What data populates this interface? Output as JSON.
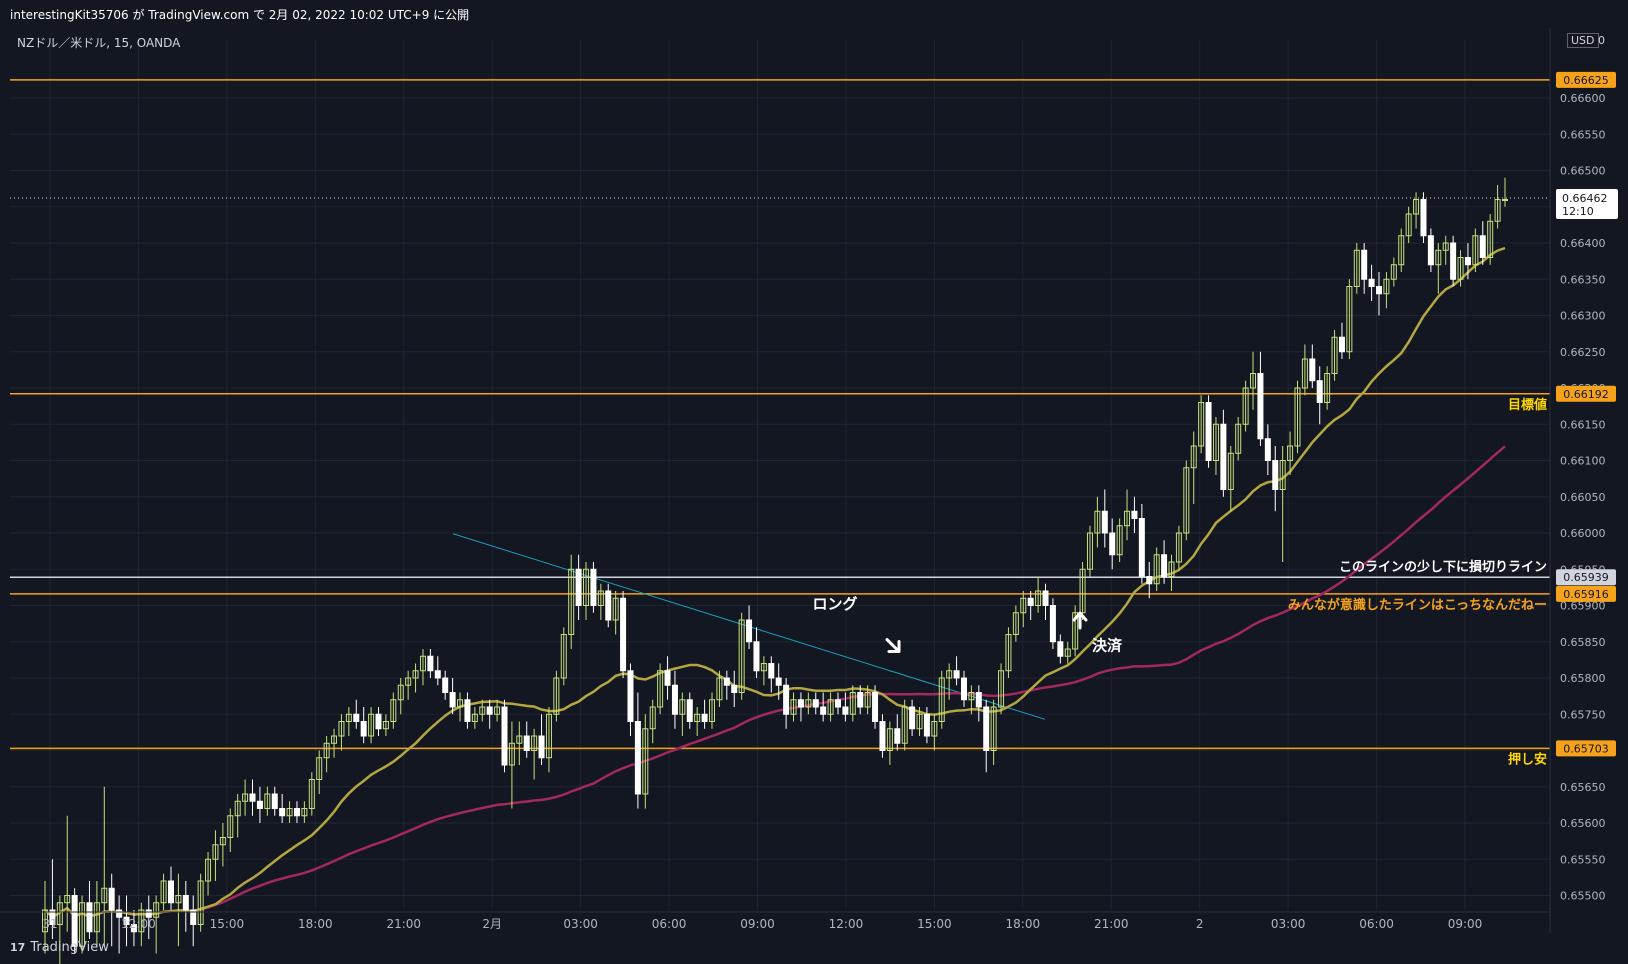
{
  "header": {
    "publish_text": "interestingKit35706 が TradingView.com で 2月 02, 2022 10:02 UTC+9 に公開",
    "symbol_text": "NZドル／米ドル, 15, OANDA",
    "currency_label": "USD",
    "currency_suffix": "0"
  },
  "footer": {
    "brand": "TradingView",
    "logo_icon": "tradingview-logo-icon"
  },
  "colors": {
    "background": "#131722",
    "grid": "#1f2433",
    "candle_up": "#c5e27a",
    "candle_down": "#ffffff",
    "sma_fast": "#b5a642",
    "sma_slow": "#a3285e",
    "horizontal_line": "#f7a21b",
    "white_line": "#d1d4dc",
    "trendline": "#1c9fc0",
    "label_yellow": "#ffd600",
    "label_orange": "#f7a21b"
  },
  "chart_data": {
    "type": "candlestick",
    "title": "NZドル／米ドル, 15, OANDA",
    "ylim": [
      0.6548,
      0.6668
    ],
    "y_ticks": [
      "0.66600",
      "0.66550",
      "0.66500",
      "0.66450",
      "0.66400",
      "0.66350",
      "0.66300",
      "0.66250",
      "0.66200",
      "0.66150",
      "0.66100",
      "0.66050",
      "0.66000",
      "0.65950",
      "0.65900",
      "0.65850",
      "0.65800",
      "0.65750",
      "0.65700",
      "0.65650",
      "0.65600",
      "0.65550",
      "0.65500"
    ],
    "x_ticks": [
      "31",
      "12:00",
      "15:00",
      "18:00",
      "21:00",
      "2月",
      "03:00",
      "06:00",
      "09:00",
      "12:00",
      "15:00",
      "18:00",
      "21:00",
      "2",
      "03:00",
      "06:00",
      "09:00"
    ],
    "horizontal_lines": [
      {
        "price": "0.66625",
        "color": "#f7a21b"
      },
      {
        "price": "0.66192",
        "color": "#f7a21b",
        "label": "目標値"
      },
      {
        "price": "0.65939",
        "color": "#d1d4dc",
        "label": "このラインの少し下に損切りライン"
      },
      {
        "price": "0.65916",
        "color": "#f7a21b",
        "label": "みんなが意識したラインはこっちなんだねー"
      },
      {
        "price": "0.65703",
        "color": "#f7a21b",
        "label": "押し安"
      }
    ],
    "current_price": {
      "price": "0.66462",
      "countdown": "12:10"
    },
    "annotations": [
      {
        "text": "ロング",
        "kind": "text"
      },
      {
        "text": "決済",
        "kind": "text"
      },
      {
        "icon": "arrow-down-right-icon",
        "kind": "arrow"
      },
      {
        "icon": "arrow-up-icon",
        "kind": "arrow"
      }
    ],
    "candles": [
      [
        0.6545,
        0.6552,
        0.6542,
        0.6548
      ],
      [
        0.6548,
        0.6555,
        0.6544,
        0.6546
      ],
      [
        0.6546,
        0.655,
        0.654,
        0.6549
      ],
      [
        0.6549,
        0.6561,
        0.6545,
        0.655
      ],
      [
        0.655,
        0.6551,
        0.6542,
        0.6543
      ],
      [
        0.6543,
        0.655,
        0.6542,
        0.6549
      ],
      [
        0.6549,
        0.6552,
        0.6544,
        0.6545
      ],
      [
        0.6545,
        0.6552,
        0.6543,
        0.6549
      ],
      [
        0.6549,
        0.6565,
        0.6543,
        0.6551
      ],
      [
        0.6551,
        0.6553,
        0.6543,
        0.6548
      ],
      [
        0.6548,
        0.655,
        0.6542,
        0.6547
      ],
      [
        0.6547,
        0.655,
        0.6543,
        0.6546
      ],
      [
        0.6546,
        0.6548,
        0.6543,
        0.6545
      ],
      [
        0.6545,
        0.6549,
        0.6543,
        0.6548
      ],
      [
        0.6548,
        0.655,
        0.6544,
        0.6547
      ],
      [
        0.6547,
        0.655,
        0.6542,
        0.6549
      ],
      [
        0.6549,
        0.6553,
        0.6548,
        0.6552
      ],
      [
        0.6552,
        0.6554,
        0.6548,
        0.6549
      ],
      [
        0.6549,
        0.6553,
        0.6543,
        0.655
      ],
      [
        0.655,
        0.6552,
        0.6545,
        0.6548
      ],
      [
        0.6548,
        0.655,
        0.6543,
        0.6546
      ],
      [
        0.6546,
        0.6553,
        0.6545,
        0.6552
      ],
      [
        0.6552,
        0.6556,
        0.655,
        0.6555
      ],
      [
        0.6555,
        0.6559,
        0.6552,
        0.6557
      ],
      [
        0.6557,
        0.656,
        0.6554,
        0.6558
      ],
      [
        0.6558,
        0.6562,
        0.6556,
        0.6561
      ],
      [
        0.6561,
        0.6564,
        0.6558,
        0.6563
      ],
      [
        0.6563,
        0.6566,
        0.6561,
        0.6564
      ],
      [
        0.6564,
        0.6566,
        0.6561,
        0.6563
      ],
      [
        0.6563,
        0.6565,
        0.656,
        0.6562
      ],
      [
        0.6562,
        0.6565,
        0.6561,
        0.6564
      ],
      [
        0.6564,
        0.6565,
        0.6561,
        0.6562
      ],
      [
        0.6562,
        0.6564,
        0.656,
        0.6561
      ],
      [
        0.6561,
        0.6563,
        0.656,
        0.6562
      ],
      [
        0.6562,
        0.6563,
        0.656,
        0.6561
      ],
      [
        0.6561,
        0.6563,
        0.656,
        0.6562
      ],
      [
        0.6562,
        0.6567,
        0.6561,
        0.6566
      ],
      [
        0.6566,
        0.657,
        0.6564,
        0.6569
      ],
      [
        0.6569,
        0.6572,
        0.6567,
        0.6571
      ],
      [
        0.6571,
        0.6573,
        0.6569,
        0.6572
      ],
      [
        0.6572,
        0.6575,
        0.657,
        0.6574
      ],
      [
        0.6574,
        0.6576,
        0.6572,
        0.6575
      ],
      [
        0.6575,
        0.6577,
        0.6573,
        0.6574
      ],
      [
        0.6574,
        0.6576,
        0.6571,
        0.6572
      ],
      [
        0.6572,
        0.6576,
        0.6571,
        0.6575
      ],
      [
        0.6575,
        0.6576,
        0.6572,
        0.6573
      ],
      [
        0.6573,
        0.6575,
        0.6572,
        0.6574
      ],
      [
        0.6574,
        0.6578,
        0.6573,
        0.6577
      ],
      [
        0.6577,
        0.658,
        0.6575,
        0.6579
      ],
      [
        0.6579,
        0.6581,
        0.6577,
        0.658
      ],
      [
        0.658,
        0.6582,
        0.6578,
        0.6581
      ],
      [
        0.6581,
        0.6584,
        0.6579,
        0.6583
      ],
      [
        0.6583,
        0.6584,
        0.658,
        0.6581
      ],
      [
        0.6581,
        0.6583,
        0.6579,
        0.658
      ],
      [
        0.658,
        0.6581,
        0.6577,
        0.6578
      ],
      [
        0.6578,
        0.658,
        0.6575,
        0.6576
      ],
      [
        0.6576,
        0.6578,
        0.6574,
        0.6577
      ],
      [
        0.6577,
        0.6578,
        0.6573,
        0.6574
      ],
      [
        0.6574,
        0.6576,
        0.6573,
        0.6575
      ],
      [
        0.6575,
        0.6577,
        0.6574,
        0.6576
      ],
      [
        0.6576,
        0.6577,
        0.6573,
        0.6575
      ],
      [
        0.6575,
        0.6577,
        0.6574,
        0.6576
      ],
      [
        0.6576,
        0.6577,
        0.6567,
        0.6568
      ],
      [
        0.6568,
        0.6574,
        0.6562,
        0.6571
      ],
      [
        0.6571,
        0.6574,
        0.6568,
        0.6572
      ],
      [
        0.6572,
        0.6574,
        0.6569,
        0.657
      ],
      [
        0.657,
        0.6573,
        0.6566,
        0.6572
      ],
      [
        0.6572,
        0.6575,
        0.6568,
        0.6569
      ],
      [
        0.6569,
        0.6576,
        0.6567,
        0.6575
      ],
      [
        0.6575,
        0.6581,
        0.6574,
        0.658
      ],
      [
        0.658,
        0.6587,
        0.6579,
        0.6586
      ],
      [
        0.6586,
        0.6597,
        0.6584,
        0.6595
      ],
      [
        0.6595,
        0.6597,
        0.6588,
        0.659
      ],
      [
        0.659,
        0.6596,
        0.6588,
        0.6595
      ],
      [
        0.6595,
        0.6596,
        0.6589,
        0.659
      ],
      [
        0.659,
        0.6593,
        0.6588,
        0.6592
      ],
      [
        0.6592,
        0.6593,
        0.6587,
        0.6588
      ],
      [
        0.6588,
        0.6592,
        0.6586,
        0.6591
      ],
      [
        0.6591,
        0.6592,
        0.658,
        0.6581
      ],
      [
        0.6581,
        0.6582,
        0.6572,
        0.6574
      ],
      [
        0.6574,
        0.6578,
        0.6562,
        0.6564
      ],
      [
        0.6564,
        0.6575,
        0.6562,
        0.6573
      ],
      [
        0.6573,
        0.6577,
        0.6571,
        0.6576
      ],
      [
        0.6576,
        0.6582,
        0.6575,
        0.6581
      ],
      [
        0.6581,
        0.6583,
        0.6577,
        0.6579
      ],
      [
        0.6579,
        0.6581,
        0.6573,
        0.6575
      ],
      [
        0.6575,
        0.6578,
        0.6572,
        0.6577
      ],
      [
        0.6577,
        0.6578,
        0.6573,
        0.6574
      ],
      [
        0.6574,
        0.6576,
        0.6572,
        0.6575
      ],
      [
        0.6575,
        0.6577,
        0.6573,
        0.6574
      ],
      [
        0.6574,
        0.6578,
        0.6573,
        0.6577
      ],
      [
        0.6577,
        0.6581,
        0.6576,
        0.658
      ],
      [
        0.658,
        0.6581,
        0.6577,
        0.6579
      ],
      [
        0.6579,
        0.6581,
        0.6576,
        0.6578
      ],
      [
        0.6578,
        0.6589,
        0.6577,
        0.6588
      ],
      [
        0.6588,
        0.659,
        0.6584,
        0.6585
      ],
      [
        0.6585,
        0.6587,
        0.658,
        0.6581
      ],
      [
        0.6581,
        0.6583,
        0.6579,
        0.6582
      ],
      [
        0.6582,
        0.6583,
        0.6578,
        0.658
      ],
      [
        0.658,
        0.6582,
        0.6577,
        0.6579
      ],
      [
        0.6579,
        0.658,
        0.6573,
        0.6575
      ],
      [
        0.6575,
        0.6578,
        0.6574,
        0.6577
      ],
      [
        0.6577,
        0.6578,
        0.6574,
        0.6576
      ],
      [
        0.6576,
        0.6578,
        0.6575,
        0.6577
      ],
      [
        0.6577,
        0.6578,
        0.6575,
        0.6576
      ],
      [
        0.6576,
        0.6578,
        0.6574,
        0.6575
      ],
      [
        0.6575,
        0.6578,
        0.6574,
        0.6577
      ],
      [
        0.6577,
        0.6578,
        0.6575,
        0.6576
      ],
      [
        0.6576,
        0.6578,
        0.6574,
        0.6575
      ],
      [
        0.6575,
        0.6579,
        0.6574,
        0.6578
      ],
      [
        0.6578,
        0.6579,
        0.6575,
        0.6576
      ],
      [
        0.6576,
        0.6579,
        0.6575,
        0.6578
      ],
      [
        0.6578,
        0.6579,
        0.6573,
        0.6574
      ],
      [
        0.6574,
        0.6575,
        0.6569,
        0.657
      ],
      [
        0.657,
        0.6574,
        0.6568,
        0.6573
      ],
      [
        0.6573,
        0.6575,
        0.657,
        0.6571
      ],
      [
        0.6571,
        0.6577,
        0.657,
        0.6576
      ],
      [
        0.6576,
        0.6577,
        0.6572,
        0.6573
      ],
      [
        0.6573,
        0.6576,
        0.6572,
        0.6575
      ],
      [
        0.6575,
        0.6576,
        0.6571,
        0.6572
      ],
      [
        0.6572,
        0.6575,
        0.657,
        0.6574
      ],
      [
        0.6574,
        0.6581,
        0.6573,
        0.658
      ],
      [
        0.658,
        0.6582,
        0.6577,
        0.6581
      ],
      [
        0.6581,
        0.6583,
        0.6579,
        0.658
      ],
      [
        0.658,
        0.6581,
        0.6576,
        0.6577
      ],
      [
        0.6577,
        0.6579,
        0.6575,
        0.6578
      ],
      [
        0.6578,
        0.6579,
        0.6574,
        0.6576
      ],
      [
        0.6576,
        0.6577,
        0.6567,
        0.657
      ],
      [
        0.657,
        0.6577,
        0.6568,
        0.6576
      ],
      [
        0.6576,
        0.6582,
        0.6575,
        0.6581
      ],
      [
        0.6581,
        0.6587,
        0.658,
        0.6586
      ],
      [
        0.6586,
        0.659,
        0.6585,
        0.6589
      ],
      [
        0.6589,
        0.6592,
        0.6587,
        0.6591
      ],
      [
        0.6591,
        0.6592,
        0.6588,
        0.659
      ],
      [
        0.659,
        0.6594,
        0.6589,
        0.6592
      ],
      [
        0.6592,
        0.6593,
        0.6588,
        0.659
      ],
      [
        0.659,
        0.6591,
        0.6584,
        0.6585
      ],
      [
        0.6585,
        0.6586,
        0.6582,
        0.6583
      ],
      [
        0.6583,
        0.6585,
        0.6582,
        0.6584
      ],
      [
        0.6584,
        0.659,
        0.6583,
        0.6589
      ],
      [
        0.6589,
        0.6596,
        0.6588,
        0.6595
      ],
      [
        0.6595,
        0.6601,
        0.6594,
        0.66
      ],
      [
        0.66,
        0.6605,
        0.6598,
        0.6603
      ],
      [
        0.6603,
        0.6606,
        0.6598,
        0.66
      ],
      [
        0.66,
        0.6602,
        0.6595,
        0.6597
      ],
      [
        0.6597,
        0.6602,
        0.6596,
        0.6601
      ],
      [
        0.6601,
        0.6606,
        0.6599,
        0.6603
      ],
      [
        0.6603,
        0.6605,
        0.66,
        0.6602
      ],
      [
        0.6602,
        0.6604,
        0.6593,
        0.6594
      ],
      [
        0.6594,
        0.6596,
        0.6591,
        0.6593
      ],
      [
        0.6593,
        0.6598,
        0.6592,
        0.6597
      ],
      [
        0.6597,
        0.6599,
        0.6593,
        0.6594
      ],
      [
        0.6594,
        0.6597,
        0.6592,
        0.6596
      ],
      [
        0.6596,
        0.6601,
        0.6595,
        0.66
      ],
      [
        0.66,
        0.661,
        0.6599,
        0.6609
      ],
      [
        0.6609,
        0.6614,
        0.6604,
        0.6612
      ],
      [
        0.6612,
        0.6619,
        0.6611,
        0.6618
      ],
      [
        0.6618,
        0.6619,
        0.6609,
        0.661
      ],
      [
        0.661,
        0.6616,
        0.6608,
        0.6615
      ],
      [
        0.6615,
        0.6617,
        0.6605,
        0.6606
      ],
      [
        0.6606,
        0.6612,
        0.6603,
        0.6611
      ],
      [
        0.6611,
        0.6616,
        0.661,
        0.6615
      ],
      [
        0.6615,
        0.6621,
        0.6614,
        0.662
      ],
      [
        0.662,
        0.6625,
        0.6617,
        0.6622
      ],
      [
        0.6622,
        0.6625,
        0.6612,
        0.6613
      ],
      [
        0.6613,
        0.6615,
        0.6608,
        0.661
      ],
      [
        0.661,
        0.6612,
        0.6603,
        0.6606
      ],
      [
        0.6606,
        0.6612,
        0.6596,
        0.661
      ],
      [
        0.661,
        0.6614,
        0.6608,
        0.6612
      ],
      [
        0.6612,
        0.6621,
        0.6611,
        0.662
      ],
      [
        0.662,
        0.6626,
        0.6619,
        0.6624
      ],
      [
        0.6624,
        0.6626,
        0.662,
        0.6621
      ],
      [
        0.6621,
        0.6623,
        0.6615,
        0.6618
      ],
      [
        0.6618,
        0.6623,
        0.6617,
        0.6622
      ],
      [
        0.6622,
        0.6628,
        0.6621,
        0.6627
      ],
      [
        0.6627,
        0.6629,
        0.6624,
        0.6625
      ],
      [
        0.6625,
        0.6635,
        0.6624,
        0.6634
      ],
      [
        0.6634,
        0.664,
        0.6633,
        0.6639
      ],
      [
        0.6639,
        0.664,
        0.6633,
        0.6635
      ],
      [
        0.6635,
        0.6637,
        0.6632,
        0.6634
      ],
      [
        0.6634,
        0.6636,
        0.663,
        0.6633
      ],
      [
        0.6633,
        0.6636,
        0.6631,
        0.6635
      ],
      [
        0.6635,
        0.6638,
        0.6634,
        0.6637
      ],
      [
        0.6637,
        0.6642,
        0.6636,
        0.6641
      ],
      [
        0.6641,
        0.6645,
        0.664,
        0.6644
      ],
      [
        0.6644,
        0.6647,
        0.6642,
        0.6646
      ],
      [
        0.6646,
        0.6647,
        0.664,
        0.6641
      ],
      [
        0.6641,
        0.6642,
        0.6636,
        0.6637
      ],
      [
        0.6637,
        0.664,
        0.6633,
        0.6639
      ],
      [
        0.6639,
        0.6641,
        0.6637,
        0.664
      ],
      [
        0.664,
        0.6641,
        0.6634,
        0.6635
      ],
      [
        0.6635,
        0.6639,
        0.6634,
        0.6638
      ],
      [
        0.6638,
        0.664,
        0.6635,
        0.6637
      ],
      [
        0.6637,
        0.6642,
        0.6636,
        0.6641
      ],
      [
        0.6641,
        0.6643,
        0.6637,
        0.6638
      ],
      [
        0.6638,
        0.6644,
        0.6637,
        0.6643
      ],
      [
        0.6643,
        0.6648,
        0.6642,
        0.6646
      ],
      [
        0.6646,
        0.6649,
        0.6645,
        0.6646
      ]
    ]
  }
}
